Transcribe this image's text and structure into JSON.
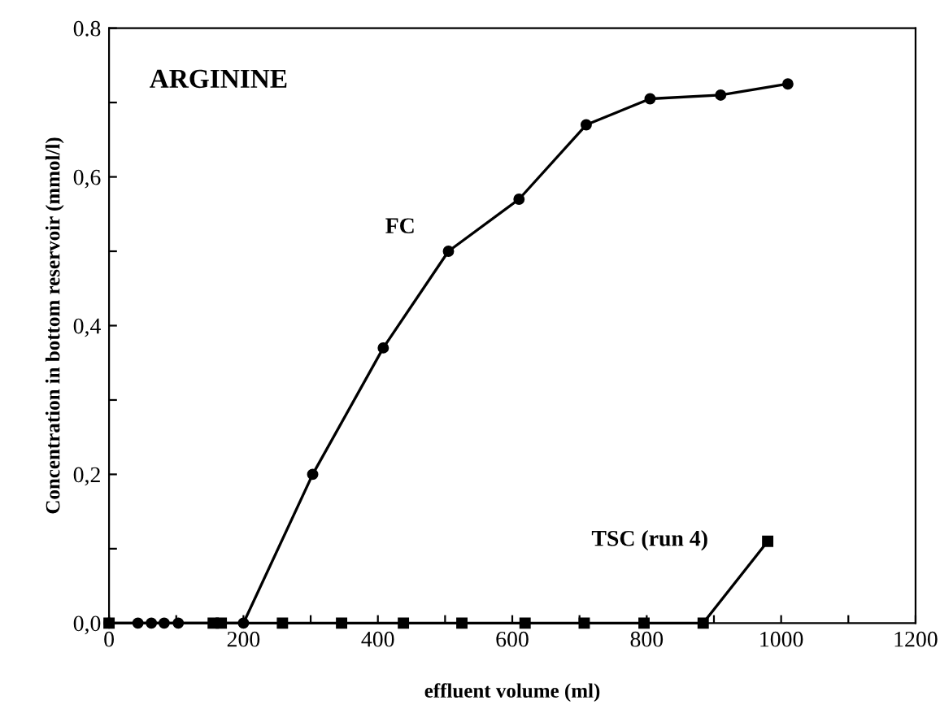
{
  "chart_data": {
    "type": "line",
    "title": "ARGININE",
    "xlabel": "effluent volume (ml)",
    "ylabel": "Concentration in bottom reservoir (mmol/l)",
    "series": [
      {
        "name": "FC",
        "color": "#000000",
        "marker": "circle",
        "x": [
          0,
          43,
          63,
          82,
          103,
          200,
          303,
          408,
          505,
          610,
          710,
          805,
          910,
          1010
        ],
        "values": [
          0,
          0,
          0,
          0,
          0,
          0,
          0.2,
          0.37,
          0.5,
          0.57,
          0.67,
          0.705,
          0.71,
          0.725
        ]
      },
      {
        "name": "TSC (run 4)",
        "color": "#000000",
        "marker": "square",
        "x": [
          0,
          155,
          167,
          258,
          346,
          438,
          525,
          619,
          707,
          796,
          884,
          980
        ],
        "values": [
          0,
          0,
          0,
          0,
          0,
          0,
          0,
          0,
          0,
          0,
          0,
          0.11
        ]
      }
    ],
    "xlim": [
      0,
      1200
    ],
    "ylim": [
      0,
      0.8
    ],
    "xticks": [
      0,
      {
        "value": 100,
        "label": null
      },
      200,
      {
        "value": 300,
        "label": null
      },
      400,
      {
        "value": 500,
        "label": null
      },
      600,
      {
        "value": 700,
        "label": null
      },
      800,
      {
        "value": 900,
        "label": null
      },
      1000,
      {
        "value": 1100,
        "label": null
      },
      1200
    ],
    "yticks": [
      {
        "value": 0,
        "label": "0,0"
      },
      {
        "value": 0.1,
        "label": null
      },
      {
        "value": 0.2,
        "label": "0,2"
      },
      {
        "value": 0.3,
        "label": null
      },
      {
        "value": 0.4,
        "label": "0,4"
      },
      {
        "value": 0.5,
        "label": null
      },
      {
        "value": 0.6,
        "label": "0,6"
      },
      {
        "value": 0.7,
        "label": null
      },
      {
        "value": 0.8,
        "label": "0.8"
      }
    ],
    "grid": false,
    "legend": false
  }
}
